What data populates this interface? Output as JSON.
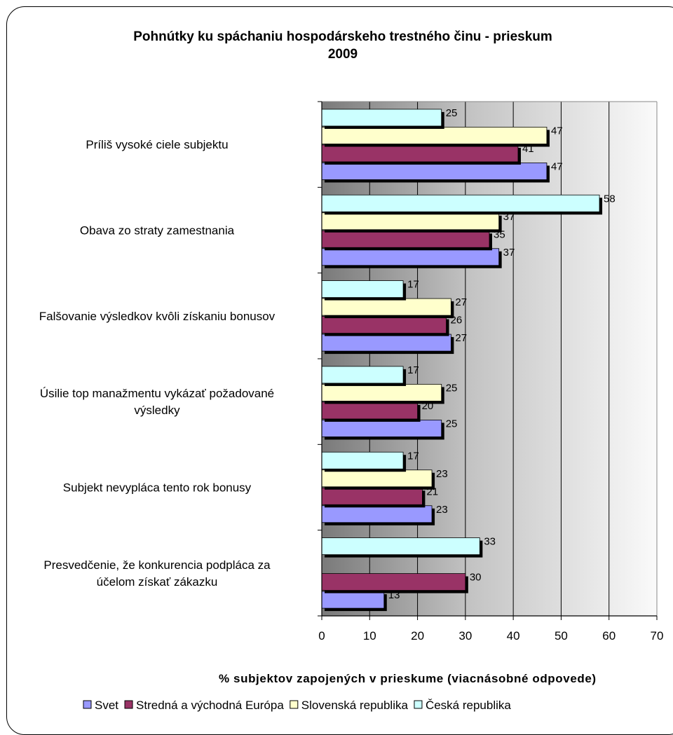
{
  "chart_data": {
    "type": "bar",
    "orientation": "horizontal",
    "title": [
      "Pohnútky ku spáchaniu hospodárskeho trestného činu - prieskum",
      "2009"
    ],
    "xlabel": "% subjektov zapojených v prieskume (viacnásobné odpovede)",
    "xlim": [
      0,
      70
    ],
    "xticks": [
      0,
      10,
      20,
      30,
      40,
      50,
      60,
      70
    ],
    "grid": true,
    "legend_position": "bottom",
    "categories": [
      [
        "Príliš vysoké ciele subjektu"
      ],
      [
        "Obava zo straty zamestnania"
      ],
      [
        "Falšovanie výsledkov kvôli získaniu bonusov"
      ],
      [
        "Úsilie top manažmentu vykázať požadované",
        "výsledky"
      ],
      [
        "Subjekt nevypláca tento rok bonusy"
      ],
      [
        "Presvedčenie, že konkurencia podpláca za",
        "účelom získať zákazku"
      ]
    ],
    "series": [
      {
        "name": "Svet",
        "color": "#9999ff",
        "values": [
          47,
          37,
          27,
          25,
          23,
          13
        ]
      },
      {
        "name": "Stredná a východná Európa",
        "color": "#993366",
        "values": [
          41,
          35,
          26,
          20,
          21,
          30
        ]
      },
      {
        "name": "Slovenská republika",
        "color": "#ffffcc",
        "values": [
          47,
          37,
          27,
          25,
          23,
          null
        ]
      },
      {
        "name": "Česká republika",
        "color": "#ccffff",
        "values": [
          25,
          58,
          17,
          17,
          17,
          33
        ]
      }
    ]
  }
}
